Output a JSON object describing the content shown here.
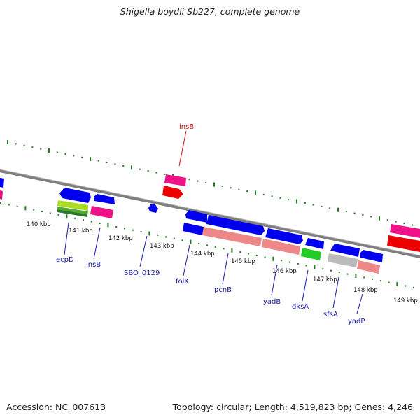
{
  "title": "Shigella boydii Sb227, complete genome",
  "accession_text": "Accession: NC_007613",
  "topology_text": "Topology: circular; Length: 4,519,823 bp; Genes: 4,246",
  "colors": {
    "backbone": "#7f7f7f",
    "ticks": "#1f7a1f",
    "gene": "#0000ee",
    "is_element": "#ee1188",
    "label": "#1a1aaa",
    "label_top": "#cc1111",
    "label_line_top": "#cc1111"
  },
  "kbp_labels": [
    "140 kbp",
    "141 kbp",
    "142 kbp",
    "143 kbp",
    "144 kbp",
    "145 kbp",
    "146 kbp",
    "147 kbp",
    "148 kbp",
    "149 kbp"
  ],
  "gene_labels": [
    {
      "name": "ecpD",
      "icon": "label"
    },
    {
      "name": "insB",
      "icon": "label"
    },
    {
      "name": "SBO_0129",
      "icon": "label"
    },
    {
      "name": "folK",
      "icon": "label"
    },
    {
      "name": "pcnB",
      "icon": "label"
    },
    {
      "name": "yadB",
      "icon": "label"
    },
    {
      "name": "dksA",
      "icon": "label"
    },
    {
      "name": "sfsA",
      "icon": "label"
    },
    {
      "name": "yadP",
      "icon": "label"
    }
  ],
  "top_label": {
    "name": "insB"
  }
}
